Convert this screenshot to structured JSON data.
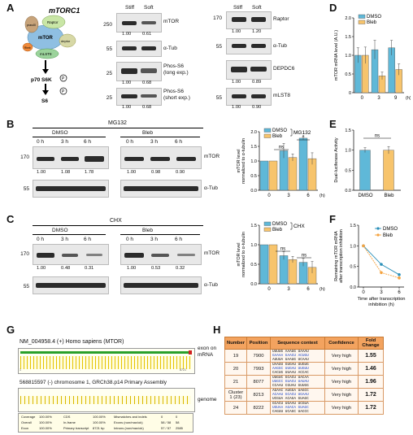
{
  "panels": [
    "A",
    "B",
    "C",
    "D",
    "E",
    "F",
    "G",
    "H"
  ],
  "A": {
    "diagram_title": "mTORC1",
    "diagram_labels": [
      "mTOR",
      "Raptor",
      "pras40",
      "deptor",
      "mLST8",
      "Rheb",
      "p70 S6K",
      "S6"
    ],
    "p_label": "P",
    "col_stiff": "Stiff",
    "col_soft": "Soft",
    "blots_left": [
      {
        "label": "mTOR",
        "mw": "250",
        "vals": [
          "1.00",
          "0.61"
        ]
      },
      {
        "label": "α-Tub",
        "mw": "55",
        "vals": []
      },
      {
        "label": "Phos-S6\n(long exp.)",
        "mw": "25",
        "vals": [
          "1.00",
          "0.68"
        ]
      },
      {
        "label": "Phos-S6\n(short exp.)",
        "mw": "25",
        "vals": [
          "1.00",
          "0.68"
        ]
      }
    ],
    "blots_right": [
      {
        "label": "Raptor",
        "mw": "170",
        "vals": [
          "1.00",
          "1.20"
        ]
      },
      {
        "label": "α-Tub",
        "mw": "55",
        "vals": []
      },
      {
        "label": "DEPDC6",
        "mw": "",
        "vals": [
          "1.00",
          "0.89"
        ]
      },
      {
        "label": "mLST8",
        "mw": "55",
        "vals": [
          "1.00",
          "0.90"
        ]
      }
    ]
  },
  "B": {
    "treatment": "MG132",
    "group1": "DMSO",
    "group2": "Bleb",
    "times": [
      "0 h",
      "3 h",
      "6 h",
      "0 h",
      "3 h",
      "6 h"
    ],
    "mw_top": "170",
    "mw_bottom": "55",
    "band1": "mTOR",
    "band2": "α-Tub",
    "vals": [
      "1.00",
      "1.08",
      "1.78",
      "1.00",
      "0.98",
      "0.90"
    ]
  },
  "C": {
    "treatment": "CHX",
    "group1": "DMSO",
    "group2": "Bleb",
    "times": [
      "0 h",
      "3 h",
      "6 h",
      "0 h",
      "3 h",
      "6 h"
    ],
    "mw_top": "170",
    "mw_bottom": "55",
    "band1": "mTOR",
    "band2": "α-Tub",
    "vals": [
      "1.00",
      "0.48",
      "0.31",
      "1.00",
      "0.53",
      "0.32"
    ]
  },
  "G": {
    "transcript": "NM_004958.4 (+) Homo sapiens (MTOR)",
    "exon_label": "exon on\nmRNA",
    "genomic": "568815597 (-) chromosome 1, GRCh38.p14 Primary Assembly",
    "genome_label": "genome",
    "track_bounds": [
      "1",
      "8721"
    ],
    "stats_rows": [
      [
        "Coverage",
        "100.00%",
        "CDS",
        "100.00%",
        "Mismatches and indels",
        "0",
        "0"
      ],
      [
        "Overall",
        "100.00%",
        "In-frame",
        "100.00%",
        "Exons (non/max/ok)",
        "58 / 58",
        "58"
      ],
      [
        "Exon",
        "100.00%",
        "Primary transcript",
        "8721 bp",
        "Introns (non/max/ok)",
        "57 / 57",
        "2585"
      ]
    ]
  },
  "H": {
    "headers": [
      "Number",
      "Position",
      "Sequence context",
      "Confidence",
      "Fold Change"
    ],
    "rows": [
      {
        "num": "19",
        "pos": "7900",
        "seq": [
          "UUUUG AAAUG UAAAU",
          "GAAAA GAACU ACUGU",
          "AUUUA UAAUG UCAAU"
        ],
        "conf": "Very high",
        "fc": "1.55"
      },
      {
        "num": "20",
        "pos": "7993",
        "seq": [
          "UAAUU GUGAU UUGUG",
          "AAGGC UUGAU UUGUU",
          "CACUG UUAAU ACCAC"
        ],
        "conf": "Very high",
        "fc": "1.46"
      },
      {
        "num": "21",
        "pos": "8077",
        "seq": [
          "UUGUC GCACU UACAA",
          "UUGCC GUACU UAUAU",
          "CCAAU CGUAU GUUGG"
        ],
        "conf": "Very high",
        "fc": "1.96"
      },
      {
        "num": "Cluster 1 (23)",
        "pos": "8213",
        "seq": [
          "AGAAC AUGGA UAGCC",
          "ACAAU GCACU UGAAU",
          "UCGUA ACAGA GUAGC"
        ],
        "conf": "Very high",
        "fc": "1.72"
      },
      {
        "num": "24",
        "pos": "8222",
        "seq": [
          "GCACU UGAAU UCGUA",
          "UGUAA AGACA GUAGC",
          "CAGUU UCAGC UACCC"
        ],
        "conf": "Very high",
        "fc": "1.72"
      }
    ]
  },
  "chart_data": [
    {
      "panel": "D",
      "type": "bar",
      "categories": [
        "0",
        "3",
        "9"
      ],
      "x_unit": "(h)",
      "ylabel": "mTOR mRNA level (A.U.)",
      "ylim": [
        0,
        2.0
      ],
      "yticks": [
        "0",
        "0.5",
        "1.0",
        "1.5",
        "2.0"
      ],
      "series": [
        {
          "name": "DMSO",
          "values": [
            1.0,
            1.15,
            1.2
          ],
          "errors": [
            0.2,
            0.25,
            0.2
          ],
          "color": "#5fb8d8"
        },
        {
          "name": "Bleb",
          "values": [
            1.0,
            0.45,
            0.62
          ],
          "errors": [
            0.22,
            0.1,
            0.15
          ],
          "color": "#f7c46c"
        }
      ]
    },
    {
      "panel": "B",
      "type": "bar",
      "categories": [
        "0",
        "3",
        "6"
      ],
      "x_unit": "(h)",
      "ylabel": "mTOR level\nnormalized to α-tubulin",
      "ylim": [
        0,
        2.0
      ],
      "yticks": [
        "0.0",
        "0.5",
        "1.0",
        "1.5",
        "2.0"
      ],
      "legend_note": "MG132",
      "annotations": [
        "ns",
        "*"
      ],
      "series": [
        {
          "name": "DMSO",
          "values": [
            1.0,
            1.35,
            1.78
          ],
          "errors": [
            0,
            0.25,
            0.05
          ],
          "color": "#5fb8d8"
        },
        {
          "name": "Bleb",
          "values": [
            1.0,
            1.12,
            1.08
          ],
          "errors": [
            0,
            0.12,
            0.2
          ],
          "color": "#f7c46c"
        }
      ]
    },
    {
      "panel": "E",
      "type": "bar",
      "categories": [
        "DMSO",
        "Bleb"
      ],
      "ylabel": "Dual-luciferase Activity",
      "ylim": [
        0,
        1.5
      ],
      "yticks": [
        "0.0",
        "0.5",
        "1.0",
        "1.5"
      ],
      "annotations": [
        "ns"
      ],
      "series": [
        {
          "name": "",
          "values": [
            1.0,
            1.0
          ],
          "errors": [
            0.06,
            0.09
          ],
          "colors": [
            "#5fb8d8",
            "#f7c46c"
          ]
        }
      ]
    },
    {
      "panel": "C",
      "type": "bar",
      "categories": [
        "0",
        "3",
        "6"
      ],
      "x_unit": "(h)",
      "ylabel": "mTOR level\nnormalized to α-tubulin",
      "ylim": [
        0,
        1.5
      ],
      "yticks": [
        "0.0",
        "0.5",
        "1.0",
        "1.5"
      ],
      "legend_note": "CHX",
      "annotations": [
        "ns",
        "ns"
      ],
      "series": [
        {
          "name": "DMSO",
          "values": [
            1.0,
            0.72,
            0.55
          ],
          "errors": [
            0,
            0.1,
            0.1
          ],
          "color": "#5fb8d8"
        },
        {
          "name": "Bleb",
          "values": [
            1.0,
            0.62,
            0.42
          ],
          "errors": [
            0,
            0.08,
            0.15
          ],
          "color": "#f7c46c"
        }
      ]
    },
    {
      "panel": "F",
      "type": "line",
      "x": [
        0,
        3,
        6
      ],
      "xticks": [
        "0",
        "3",
        "6"
      ],
      "xlabel": "Time after transcription\ninhibition (h)",
      "ylabel": "Remaining mTOR mRNA\nafter transcription inhibition",
      "ylim": [
        0,
        1.5
      ],
      "yticks": [
        "0.0",
        "0.5",
        "1.0",
        "1.5"
      ],
      "series": [
        {
          "name": "DMSO",
          "values": [
            1.0,
            0.55,
            0.3
          ],
          "color": "#2a8fb8"
        },
        {
          "name": "Bleb",
          "values": [
            1.0,
            0.35,
            0.22
          ],
          "color": "#f5a33f"
        }
      ]
    }
  ]
}
